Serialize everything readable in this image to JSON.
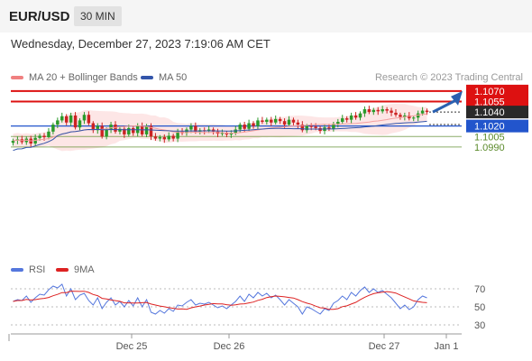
{
  "header": {
    "symbol": "EUR/USD",
    "interval": "30 MIN"
  },
  "datetime": "Wednesday, December 27, 2023 7:19:06 AM CET",
  "legend_main": [
    {
      "label": "MA 20 + Bollinger Bands",
      "color": "#f08080"
    },
    {
      "label": "MA 50",
      "color": "#3355aa"
    }
  ],
  "copyright": "Research © 2023 Trading Central",
  "legend_rsi": [
    {
      "label": "RSI",
      "color": "#5577dd"
    },
    {
      "label": "9MA",
      "color": "#dd2222"
    }
  ],
  "colors": {
    "resistance": "#dd1111",
    "support": "#2255cc",
    "target": "#5a8a2a",
    "last_price": "#2a2a2a",
    "arrow": "#2a60b0",
    "up": "#2a9a2a",
    "down": "#cc2222",
    "band": "#fde0e0",
    "ma20": "#f4a0a0",
    "ma50": "#3355aa"
  },
  "chart_data": [
    {
      "type": "candlestick",
      "title": "EUR/USD",
      "ylim": [
        1.0835,
        1.1075
      ],
      "x_ticks": [
        "Dec 25",
        "Dec 26",
        "Dec 27",
        "Jan 1"
      ],
      "levels": [
        {
          "value": 1.107,
          "label": "1.1070",
          "kind": "resistance"
        },
        {
          "value": 1.1055,
          "label": "1.1055",
          "kind": "resistance"
        },
        {
          "value": 1.104,
          "label": "1.1040",
          "kind": "last"
        },
        {
          "value": 1.102,
          "label": "1.1020",
          "kind": "support"
        },
        {
          "value": 1.1005,
          "label": "1.1005",
          "kind": "target"
        },
        {
          "value": 1.099,
          "label": "1.0990",
          "kind": "target"
        }
      ],
      "close": [
        1.0999,
        1.1001,
        1.0997,
        1.1002,
        1.0995,
        1.1003,
        1.1006,
        1.1004,
        1.1012,
        1.1022,
        1.1028,
        1.1034,
        1.1025,
        1.1035,
        1.1018,
        1.1028,
        1.1036,
        1.1024,
        1.1014,
        1.102,
        1.1005,
        1.1015,
        1.1022,
        1.1012,
        1.1016,
        1.1008,
        1.1017,
        1.101,
        1.102,
        1.1008,
        1.102,
        1.1005,
        1.1002,
        1.1004,
        1.1001,
        1.1006,
        1.1002,
        1.1012,
        1.101,
        1.1015,
        1.102,
        1.1012,
        1.1014,
        1.1013,
        1.1015,
        1.1012,
        1.1009,
        1.101,
        1.1008,
        1.101,
        1.1015,
        1.1022,
        1.1016,
        1.1024,
        1.102,
        1.1028,
        1.1026,
        1.1029,
        1.1025,
        1.103,
        1.1027,
        1.1022,
        1.1029,
        1.1025,
        1.1022,
        1.1014,
        1.102,
        1.1019,
        1.1017,
        1.1013,
        1.1018,
        1.1016,
        1.1023,
        1.1026,
        1.1031,
        1.1029,
        1.1035,
        1.1032,
        1.1038,
        1.1044,
        1.104,
        1.1043,
        1.1041,
        1.1044,
        1.1042,
        1.1039,
        1.1036,
        1.1033,
        1.1035,
        1.1031,
        1.1032,
        1.1038,
        1.1042,
        1.104
      ],
      "rsi": [
        56,
        58,
        57,
        62,
        55,
        60,
        64,
        63,
        69,
        73,
        71,
        75,
        62,
        70,
        58,
        63,
        65,
        57,
        52,
        60,
        48,
        55,
        60,
        52,
        56,
        50,
        57,
        51,
        60,
        50,
        58,
        44,
        42,
        46,
        43,
        48,
        45,
        52,
        51,
        55,
        58,
        52,
        54,
        53,
        55,
        52,
        49,
        51,
        48,
        52,
        56,
        62,
        56,
        64,
        60,
        66,
        62,
        65,
        60,
        63,
        58,
        52,
        58,
        54,
        50,
        42,
        50,
        48,
        45,
        42,
        48,
        46,
        54,
        57,
        62,
        58,
        66,
        62,
        68,
        72,
        66,
        70,
        66,
        68,
        64,
        60,
        54,
        48,
        52,
        47,
        50,
        58,
        62,
        60
      ],
      "rsi_ylim": [
        20,
        80
      ],
      "rsi_levels": [
        70,
        50,
        30
      ],
      "forecast": {
        "from": 1.104,
        "to": 1.107
      }
    }
  ]
}
